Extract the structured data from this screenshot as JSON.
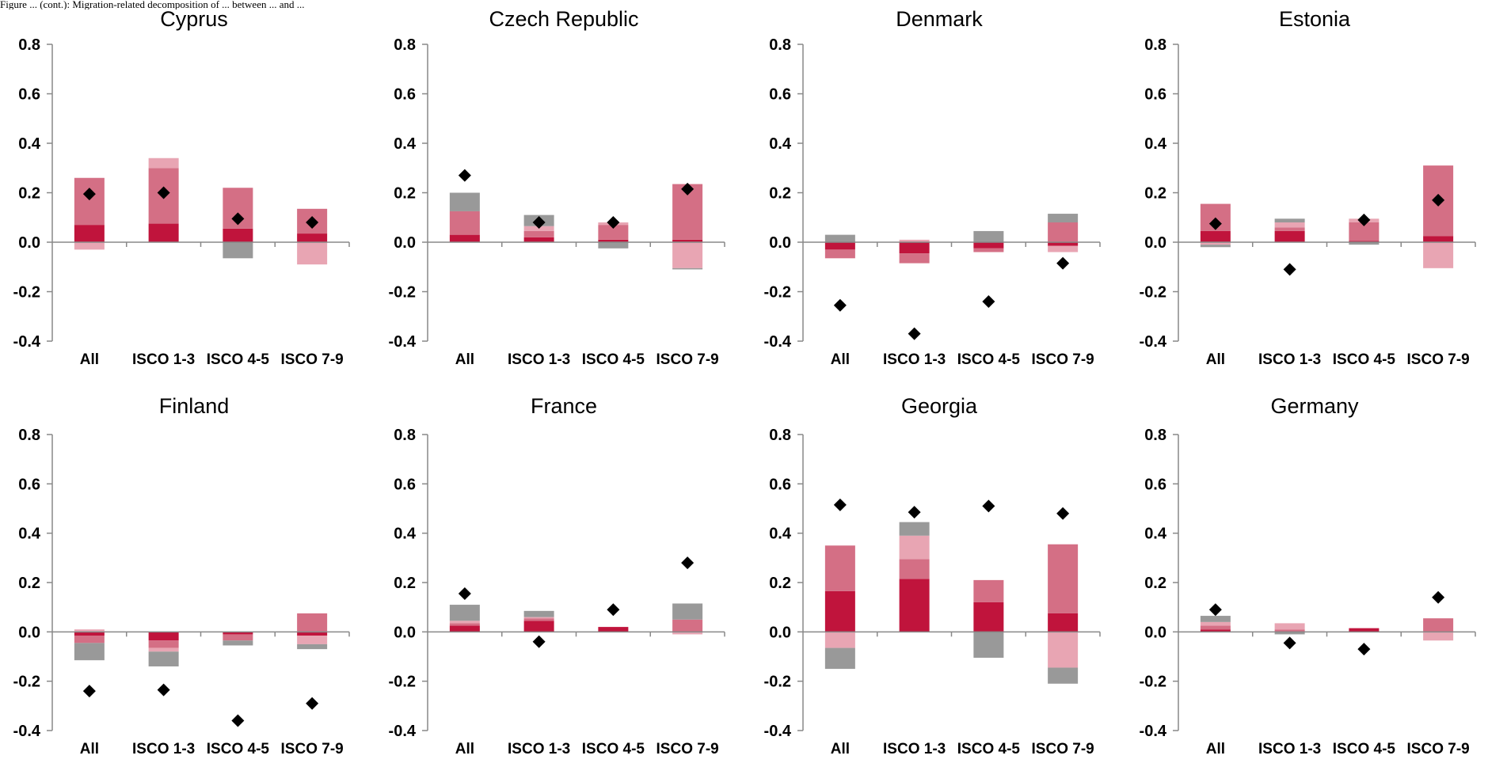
{
  "header": {
    "caption": "Figure ... (cont.): Migration-related decomposition of ... between ... and ..."
  },
  "chart_data": [
    {
      "type": "bar",
      "title": "Cyprus",
      "categories": [
        "All",
        "ISCO 1-3",
        "ISCO 4-5",
        "ISCO 7-9"
      ],
      "ylim": [
        -0.4,
        0.8
      ],
      "yticks": [
        -0.4,
        -0.2,
        0.0,
        0.2,
        0.4,
        0.6,
        0.8
      ],
      "series": [
        {
          "color": "#c0143c",
          "values": [
            0.07,
            0.075,
            0.055,
            0.035
          ]
        },
        {
          "color": "#d46f85",
          "values": [
            0.19,
            0.225,
            0.165,
            0.1
          ]
        },
        {
          "color": "#e8a5b3",
          "values": [
            -0.03,
            0.04,
            0.0,
            -0.09
          ]
        },
        {
          "color": "#999999",
          "values": [
            0.0,
            0.0,
            -0.065,
            0.0
          ]
        }
      ],
      "markers": [
        0.195,
        0.2,
        0.095,
        0.08
      ]
    },
    {
      "type": "bar",
      "title": "Czech Republic",
      "categories": [
        "All",
        "ISCO 1-3",
        "ISCO 4-5",
        "ISCO 7-9"
      ],
      "ylim": [
        -0.4,
        0.8
      ],
      "yticks": [
        -0.4,
        -0.2,
        0.0,
        0.2,
        0.4,
        0.6,
        0.8
      ],
      "series": [
        {
          "color": "#c0143c",
          "values": [
            0.03,
            0.02,
            0.01,
            0.01
          ]
        },
        {
          "color": "#d46f85",
          "values": [
            0.095,
            0.025,
            0.06,
            0.225
          ]
        },
        {
          "color": "#e8a5b3",
          "values": [
            0.0,
            0.02,
            0.01,
            -0.105
          ]
        },
        {
          "color": "#999999",
          "values": [
            0.075,
            0.045,
            -0.025,
            -0.005
          ]
        }
      ],
      "markers": [
        0.27,
        0.08,
        0.08,
        0.215
      ]
    },
    {
      "type": "bar",
      "title": "Denmark",
      "categories": [
        "All",
        "ISCO 1-3",
        "ISCO 4-5",
        "ISCO 7-9"
      ],
      "ylim": [
        -0.4,
        0.8
      ],
      "yticks": [
        -0.4,
        -0.2,
        0.0,
        0.2,
        0.4,
        0.6,
        0.8
      ],
      "series": [
        {
          "color": "#c0143c",
          "values": [
            -0.03,
            -0.045,
            -0.025,
            -0.015
          ]
        },
        {
          "color": "#d46f85",
          "values": [
            -0.035,
            -0.04,
            -0.015,
            0.08
          ]
        },
        {
          "color": "#e8a5b3",
          "values": [
            0.0,
            0.01,
            0.0,
            -0.025
          ]
        },
        {
          "color": "#999999",
          "values": [
            0.03,
            0.0,
            0.045,
            0.035
          ]
        }
      ],
      "markers": [
        -0.255,
        -0.37,
        -0.24,
        -0.085
      ]
    },
    {
      "type": "bar",
      "title": "Estonia",
      "categories": [
        "All",
        "ISCO 1-3",
        "ISCO 4-5",
        "ISCO 7-9"
      ],
      "ylim": [
        -0.4,
        0.8
      ],
      "yticks": [
        -0.4,
        -0.2,
        0.0,
        0.2,
        0.4,
        0.6,
        0.8
      ],
      "series": [
        {
          "color": "#c0143c",
          "values": [
            0.045,
            0.045,
            0.005,
            0.025
          ]
        },
        {
          "color": "#d46f85",
          "values": [
            0.11,
            0.015,
            0.075,
            0.285
          ]
        },
        {
          "color": "#e8a5b3",
          "values": [
            -0.01,
            0.02,
            0.015,
            -0.105
          ]
        },
        {
          "color": "#999999",
          "values": [
            -0.01,
            0.015,
            -0.01,
            0.0
          ]
        }
      ],
      "markers": [
        0.075,
        -0.11,
        0.09,
        0.17
      ]
    },
    {
      "type": "bar",
      "title": "Finland",
      "categories": [
        "All",
        "ISCO 1-3",
        "ISCO 4-5",
        "ISCO 7-9"
      ],
      "ylim": [
        -0.4,
        0.8
      ],
      "yticks": [
        -0.4,
        -0.2,
        0.0,
        0.2,
        0.4,
        0.6,
        0.8
      ],
      "series": [
        {
          "color": "#c0143c",
          "values": [
            -0.015,
            -0.035,
            -0.01,
            -0.015
          ]
        },
        {
          "color": "#d46f85",
          "values": [
            -0.03,
            -0.03,
            -0.025,
            0.075
          ]
        },
        {
          "color": "#e8a5b3",
          "values": [
            0.01,
            -0.015,
            0.0,
            -0.035
          ]
        },
        {
          "color": "#999999",
          "values": [
            -0.07,
            -0.06,
            -0.02,
            -0.02
          ]
        }
      ],
      "markers": [
        -0.24,
        -0.235,
        -0.36,
        -0.29
      ]
    },
    {
      "type": "bar",
      "title": "France",
      "categories": [
        "All",
        "ISCO 1-3",
        "ISCO 4-5",
        "ISCO 7-9"
      ],
      "ylim": [
        -0.4,
        0.8
      ],
      "yticks": [
        -0.4,
        -0.2,
        0.0,
        0.2,
        0.4,
        0.6,
        0.8
      ],
      "series": [
        {
          "color": "#c0143c",
          "values": [
            0.025,
            0.045,
            0.02,
            0.0
          ]
        },
        {
          "color": "#d46f85",
          "values": [
            0.01,
            0.01,
            0.0,
            0.05
          ]
        },
        {
          "color": "#e8a5b3",
          "values": [
            0.01,
            0.005,
            0.0,
            -0.01
          ]
        },
        {
          "color": "#999999",
          "values": [
            0.065,
            0.025,
            0.0,
            0.065
          ]
        }
      ],
      "markers": [
        0.155,
        -0.04,
        0.09,
        0.28
      ]
    },
    {
      "type": "bar",
      "title": "Georgia",
      "categories": [
        "All",
        "ISCO 1-3",
        "ISCO 4-5",
        "ISCO 7-9"
      ],
      "ylim": [
        -0.4,
        0.8
      ],
      "yticks": [
        -0.4,
        -0.2,
        0.0,
        0.2,
        0.4,
        0.6,
        0.8
      ],
      "series": [
        {
          "color": "#c0143c",
          "values": [
            0.165,
            0.215,
            0.12,
            0.075
          ]
        },
        {
          "color": "#d46f85",
          "values": [
            0.185,
            0.08,
            0.09,
            0.28
          ]
        },
        {
          "color": "#e8a5b3",
          "values": [
            -0.065,
            0.095,
            0.0,
            -0.145
          ]
        },
        {
          "color": "#999999",
          "values": [
            -0.085,
            0.055,
            -0.105,
            -0.065
          ]
        }
      ],
      "markers": [
        0.515,
        0.485,
        0.51,
        0.48
      ]
    },
    {
      "type": "bar",
      "title": "Germany",
      "categories": [
        "All",
        "ISCO 1-3",
        "ISCO 4-5",
        "ISCO 7-9"
      ],
      "ylim": [
        -0.4,
        0.8
      ],
      "yticks": [
        -0.4,
        -0.2,
        0.0,
        0.2,
        0.4,
        0.6,
        0.8
      ],
      "series": [
        {
          "color": "#c0143c",
          "values": [
            0.01,
            0.0,
            0.015,
            0.0
          ]
        },
        {
          "color": "#d46f85",
          "values": [
            0.015,
            0.01,
            0.0,
            0.055
          ]
        },
        {
          "color": "#e8a5b3",
          "values": [
            0.015,
            0.025,
            0.0,
            -0.035
          ]
        },
        {
          "color": "#999999",
          "values": [
            0.025,
            -0.01,
            0.0,
            0.0
          ]
        }
      ],
      "markers": [
        0.09,
        -0.045,
        -0.07,
        0.14
      ]
    }
  ]
}
